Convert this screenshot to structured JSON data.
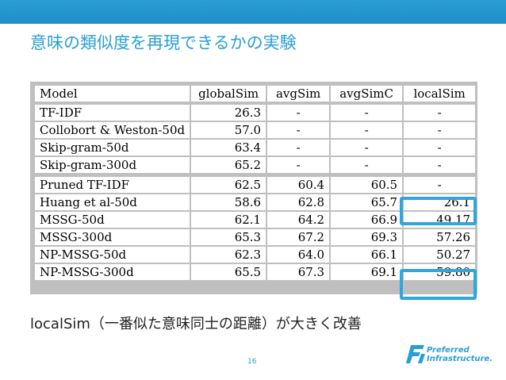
{
  "slide": {
    "title": "意味の類似度を再現できるかの実験",
    "caption": "localSim（一番似た意味同士の距離）が大きく改善",
    "page_number": "16",
    "accent_color": "#2a9ed4",
    "highlight_color": "#2fa6df"
  },
  "logo": {
    "line1": "Preferred",
    "line2": "Infrastructure."
  },
  "table": {
    "headers": [
      "Model",
      "globalSim",
      "avgSim",
      "avgSimC",
      "localSim"
    ],
    "groups": [
      [
        {
          "model": "TF-IDF",
          "globalSim": "26.3",
          "avgSim": "-",
          "avgSimC": "-",
          "localSim": "-"
        },
        {
          "model": "Collobort & Weston-50d",
          "globalSim": "57.0",
          "avgSim": "-",
          "avgSimC": "-",
          "localSim": "-"
        },
        {
          "model": "Skip-gram-50d",
          "globalSim": "63.4",
          "avgSim": "-",
          "avgSimC": "-",
          "localSim": "-"
        },
        {
          "model": "Skip-gram-300d",
          "globalSim": "65.2",
          "avgSim": "-",
          "avgSimC": "-",
          "localSim": "-"
        }
      ],
      [
        {
          "model": "Pruned TF-IDF",
          "globalSim": "62.5",
          "avgSim": "60.4",
          "avgSimC": "60.5",
          "localSim": "-"
        },
        {
          "model": "Huang et al-50d",
          "globalSim": "58.6",
          "avgSim": "62.8",
          "avgSimC": "65.7",
          "localSim": "26.1"
        },
        {
          "model": "MSSG-50d",
          "globalSim": "62.1",
          "avgSim": "64.2",
          "avgSimC": "66.9",
          "localSim": "49.17"
        },
        {
          "model": "MSSG-300d",
          "globalSim": "65.3",
          "avgSim": "67.2",
          "avgSimC": "69.3",
          "localSim": "57.26"
        },
        {
          "model": "NP-MSSG-50d",
          "globalSim": "62.3",
          "avgSim": "64.0",
          "avgSimC": "66.1",
          "localSim": "50.27"
        },
        {
          "model": "NP-MSSG-300d",
          "globalSim": "65.5",
          "avgSim": "67.3",
          "avgSimC": "69.1",
          "localSim": "59.80"
        }
      ]
    ]
  }
}
